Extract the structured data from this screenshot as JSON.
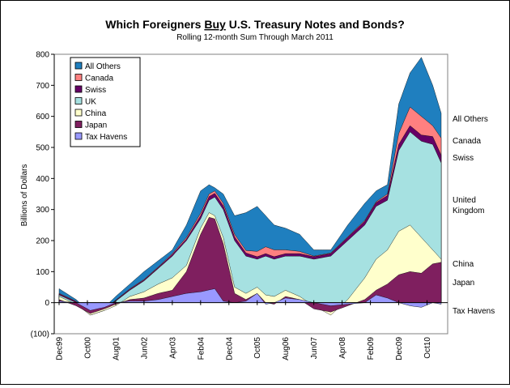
{
  "chart_data": {
    "type": "area",
    "stacked": true,
    "title_parts": [
      "Which Foreigners ",
      "Buy",
      " U.S. Treasury Notes and Bonds?"
    ],
    "subtitle": "Rolling 12-month Sum Through March 2011",
    "ylabel": "Billions of Dollars",
    "ylim": [
      -100,
      800
    ],
    "yticks": [
      -100,
      0,
      100,
      200,
      300,
      400,
      500,
      600,
      700,
      800
    ],
    "ytick_labels": [
      "(100)",
      "0",
      "100",
      "200",
      "300",
      "400",
      "500",
      "600",
      "700",
      "800"
    ],
    "xticks": [
      "Dec99",
      "Oct00",
      "Aug01",
      "Jun02",
      "Apr03",
      "Feb04",
      "Dec04",
      "Oct05",
      "Aug06",
      "Jun07",
      "Apr08",
      "Feb09",
      "Dec09",
      "Oct10"
    ],
    "xtick_index": [
      0,
      10,
      20,
      30,
      40,
      50,
      60,
      70,
      80,
      90,
      100,
      110,
      120,
      130
    ],
    "legend_position": "top-left",
    "grid": false,
    "x_start": "Dec99",
    "x_end": "Mar11",
    "series": [
      {
        "name": "Tax Havens",
        "color": "#9999ff",
        "end_label": "Tax Havens",
        "end_label_color": "#008080",
        "values": [
          [
            0,
            5
          ],
          [
            6,
            0
          ],
          [
            11,
            -25
          ],
          [
            16,
            -15
          ],
          [
            20,
            0
          ],
          [
            25,
            5
          ],
          [
            30,
            5
          ],
          [
            35,
            10
          ],
          [
            40,
            20
          ],
          [
            45,
            30
          ],
          [
            50,
            35
          ],
          [
            55,
            45
          ],
          [
            58,
            5
          ],
          [
            62,
            0
          ],
          [
            66,
            5
          ],
          [
            70,
            30
          ],
          [
            73,
            -5
          ],
          [
            76,
            0
          ],
          [
            80,
            15
          ],
          [
            85,
            10
          ],
          [
            90,
            0
          ],
          [
            96,
            -10
          ],
          [
            102,
            -5
          ],
          [
            108,
            0
          ],
          [
            112,
            25
          ],
          [
            116,
            15
          ],
          [
            120,
            0
          ],
          [
            124,
            -10
          ],
          [
            128,
            -15
          ],
          [
            132,
            0
          ],
          [
            135,
            -5
          ]
        ]
      },
      {
        "name": "Japan",
        "color": "#7f1f5f",
        "end_label": "Japan",
        "end_label_color": "#800080",
        "values": [
          [
            0,
            10
          ],
          [
            6,
            -10
          ],
          [
            11,
            -35
          ],
          [
            16,
            -20
          ],
          [
            20,
            -5
          ],
          [
            25,
            10
          ],
          [
            30,
            15
          ],
          [
            35,
            30
          ],
          [
            40,
            40
          ],
          [
            45,
            100
          ],
          [
            50,
            220
          ],
          [
            53,
            275
          ],
          [
            55,
            270
          ],
          [
            58,
            190
          ],
          [
            62,
            30
          ],
          [
            66,
            10
          ],
          [
            70,
            30
          ],
          [
            73,
            0
          ],
          [
            76,
            -5
          ],
          [
            80,
            20
          ],
          [
            85,
            10
          ],
          [
            90,
            -20
          ],
          [
            96,
            -30
          ],
          [
            102,
            -10
          ],
          [
            108,
            10
          ],
          [
            112,
            40
          ],
          [
            116,
            60
          ],
          [
            120,
            90
          ],
          [
            124,
            100
          ],
          [
            128,
            95
          ],
          [
            132,
            125
          ],
          [
            135,
            130
          ]
        ]
      },
      {
        "name": "China",
        "color": "#ffffcc",
        "end_label": "China",
        "end_label_color": "#000000",
        "values": [
          [
            0,
            20
          ],
          [
            6,
            -5
          ],
          [
            11,
            -40
          ],
          [
            16,
            -25
          ],
          [
            20,
            -10
          ],
          [
            25,
            20
          ],
          [
            30,
            35
          ],
          [
            35,
            60
          ],
          [
            40,
            80
          ],
          [
            45,
            120
          ],
          [
            50,
            240
          ],
          [
            53,
            290
          ],
          [
            55,
            280
          ],
          [
            58,
            210
          ],
          [
            62,
            50
          ],
          [
            66,
            30
          ],
          [
            70,
            50
          ],
          [
            73,
            25
          ],
          [
            76,
            20
          ],
          [
            80,
            40
          ],
          [
            85,
            20
          ],
          [
            90,
            -10
          ],
          [
            96,
            -40
          ],
          [
            102,
            10
          ],
          [
            108,
            80
          ],
          [
            112,
            140
          ],
          [
            116,
            170
          ],
          [
            120,
            230
          ],
          [
            124,
            250
          ],
          [
            128,
            210
          ],
          [
            132,
            170
          ],
          [
            135,
            140
          ]
        ]
      },
      {
        "name": "UK",
        "color": "#a6e1e1",
        "end_label": "United\nKingdom",
        "end_label_color": "#000000",
        "values": [
          [
            0,
            25
          ],
          [
            6,
            0
          ],
          [
            11,
            -40
          ],
          [
            16,
            -25
          ],
          [
            20,
            5
          ],
          [
            25,
            40
          ],
          [
            30,
            70
          ],
          [
            35,
            110
          ],
          [
            40,
            150
          ],
          [
            45,
            200
          ],
          [
            50,
            270
          ],
          [
            53,
            330
          ],
          [
            55,
            340
          ],
          [
            58,
            300
          ],
          [
            62,
            200
          ],
          [
            66,
            150
          ],
          [
            70,
            140
          ],
          [
            73,
            150
          ],
          [
            76,
            140
          ],
          [
            80,
            150
          ],
          [
            85,
            150
          ],
          [
            90,
            140
          ],
          [
            96,
            150
          ],
          [
            102,
            200
          ],
          [
            108,
            250
          ],
          [
            112,
            310
          ],
          [
            116,
            330
          ],
          [
            120,
            490
          ],
          [
            124,
            550
          ],
          [
            128,
            520
          ],
          [
            132,
            510
          ],
          [
            135,
            450
          ]
        ]
      },
      {
        "name": "Swiss",
        "color": "#660066",
        "end_label": "Swiss",
        "end_label_color": "#800080",
        "values": [
          [
            0,
            28
          ],
          [
            6,
            3
          ],
          [
            11,
            -38
          ],
          [
            16,
            -22
          ],
          [
            20,
            7
          ],
          [
            25,
            43
          ],
          [
            30,
            73
          ],
          [
            35,
            113
          ],
          [
            40,
            155
          ],
          [
            45,
            205
          ],
          [
            50,
            280
          ],
          [
            53,
            342
          ],
          [
            55,
            352
          ],
          [
            58,
            312
          ],
          [
            62,
            212
          ],
          [
            66,
            160
          ],
          [
            70,
            148
          ],
          [
            73,
            158
          ],
          [
            76,
            148
          ],
          [
            80,
            158
          ],
          [
            85,
            158
          ],
          [
            90,
            148
          ],
          [
            96,
            158
          ],
          [
            102,
            210
          ],
          [
            108,
            262
          ],
          [
            112,
            322
          ],
          [
            116,
            345
          ],
          [
            120,
            510
          ],
          [
            124,
            570
          ],
          [
            128,
            540
          ],
          [
            132,
            535
          ],
          [
            135,
            475
          ]
        ]
      },
      {
        "name": "Canada",
        "color": "#ff8080",
        "end_label": "Canada",
        "end_label_color": "#ff6666",
        "values": [
          [
            0,
            30
          ],
          [
            6,
            5
          ],
          [
            11,
            -37
          ],
          [
            16,
            -21
          ],
          [
            20,
            8
          ],
          [
            25,
            45
          ],
          [
            30,
            75
          ],
          [
            35,
            115
          ],
          [
            40,
            158
          ],
          [
            45,
            210
          ],
          [
            50,
            288
          ],
          [
            53,
            350
          ],
          [
            55,
            360
          ],
          [
            58,
            320
          ],
          [
            62,
            220
          ],
          [
            66,
            168
          ],
          [
            70,
            165
          ],
          [
            73,
            180
          ],
          [
            76,
            170
          ],
          [
            80,
            170
          ],
          [
            85,
            165
          ],
          [
            90,
            150
          ],
          [
            96,
            160
          ],
          [
            102,
            212
          ],
          [
            108,
            265
          ],
          [
            112,
            325
          ],
          [
            116,
            350
          ],
          [
            120,
            545
          ],
          [
            124,
            630
          ],
          [
            128,
            600
          ],
          [
            132,
            570
          ],
          [
            135,
            530
          ]
        ]
      },
      {
        "name": "All Others",
        "color": "#1f7fbf",
        "end_label": "All Others",
        "end_label_color": "#0000ff",
        "values": [
          [
            0,
            45
          ],
          [
            6,
            10
          ],
          [
            11,
            -30
          ],
          [
            16,
            -15
          ],
          [
            20,
            20
          ],
          [
            25,
            60
          ],
          [
            30,
            100
          ],
          [
            35,
            135
          ],
          [
            40,
            170
          ],
          [
            45,
            250
          ],
          [
            50,
            360
          ],
          [
            53,
            380
          ],
          [
            55,
            370
          ],
          [
            58,
            350
          ],
          [
            62,
            280
          ],
          [
            66,
            290
          ],
          [
            70,
            310
          ],
          [
            73,
            280
          ],
          [
            76,
            250
          ],
          [
            80,
            240
          ],
          [
            85,
            220
          ],
          [
            90,
            170
          ],
          [
            96,
            170
          ],
          [
            102,
            250
          ],
          [
            108,
            320
          ],
          [
            112,
            360
          ],
          [
            116,
            380
          ],
          [
            120,
            640
          ],
          [
            124,
            740
          ],
          [
            128,
            790
          ],
          [
            132,
            700
          ],
          [
            135,
            610
          ]
        ]
      }
    ]
  }
}
